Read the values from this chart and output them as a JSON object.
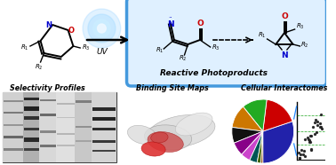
{
  "bg_color": "#ffffff",
  "top_box_color": "#4499dd",
  "top_box_fill": "#dff0ff",
  "reactive_label": "Reactive Photoproducts",
  "selectivity_label": "Selectivity Profiles",
  "binding_label": "Binding Site Maps",
  "cellular_label": "Cellular Interactomes",
  "pie_colors": [
    "#2222aa",
    "#cc0000",
    "#22aa22",
    "#cc7700",
    "#111111",
    "#880088",
    "#cc44cc",
    "#005555",
    "#446600",
    "#884400"
  ],
  "pie_sizes": [
    30,
    18,
    13,
    12,
    8,
    7,
    5,
    4,
    2,
    1
  ],
  "gel_bg": "#c8c8c8",
  "gel_border": "#555555"
}
